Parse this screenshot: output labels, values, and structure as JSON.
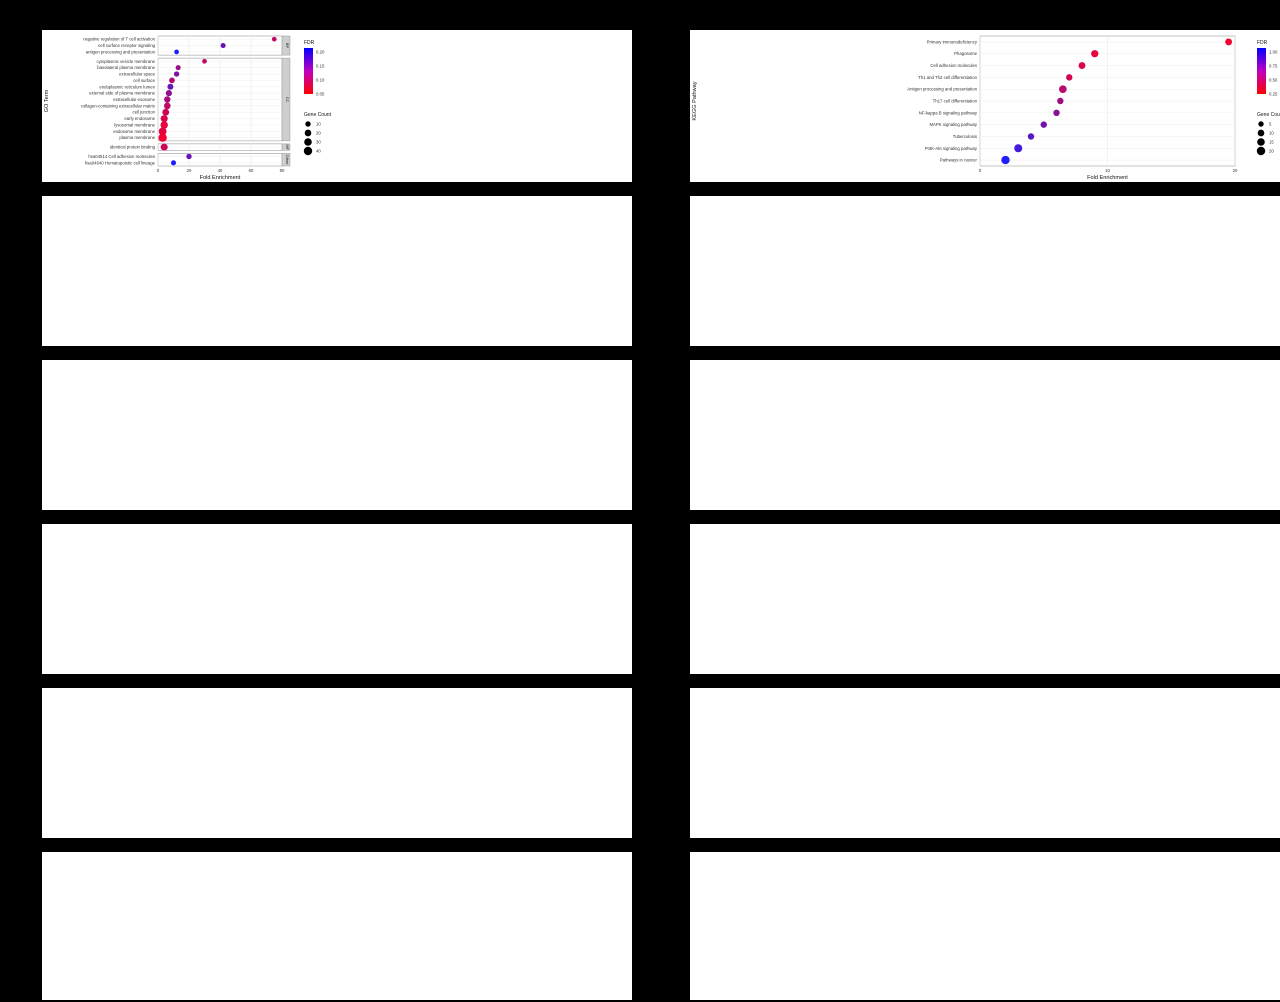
{
  "chart_data": [
    {
      "type": "scatter",
      "title": "",
      "xlabel": "Fold Enrichment",
      "ylabel": "GO Term",
      "grid": true,
      "legend_position": "right",
      "legend": {
        "fdr_title": "FDR",
        "fdr_ticks": [
          "0.20",
          "0.15",
          "0.10",
          "0.05"
        ],
        "count_title": "Gene Count",
        "count_ticks": [
          "10",
          "20",
          "30",
          "40"
        ]
      },
      "color_low": "#ff0000",
      "color_high": "#0000ff",
      "xlim": [
        0,
        80
      ],
      "x_ticks": [
        "0",
        "20",
        "40",
        "60",
        "80"
      ],
      "groups": [
        {
          "strip": "BP",
          "terms": [
            {
              "label": "negative regulation of T cell activation",
              "x": 75,
              "fdr": 0.05,
              "count": 3
            },
            {
              "label": "cell surface receptor signaling",
              "x": 42,
              "fdr": 0.12,
              "count": 4
            },
            {
              "label": "antigen processing and presentation",
              "x": 12,
              "fdr": 0.18,
              "count": 3
            }
          ]
        },
        {
          "strip": "CC",
          "terms": [
            {
              "label": "cytoplasmic vesicle membrane",
              "x": 30,
              "fdr": 0.05,
              "count": 3
            },
            {
              "label": "basolateral plasma membrane",
              "x": 13,
              "fdr": 0.08,
              "count": 4
            },
            {
              "label": "extracellular space",
              "x": 12,
              "fdr": 0.1,
              "count": 5
            },
            {
              "label": "cell surface",
              "x": 9,
              "fdr": 0.06,
              "count": 6
            },
            {
              "label": "endoplasmic reticulum lumen",
              "x": 8,
              "fdr": 0.12,
              "count": 7
            },
            {
              "label": "external side of plasma membrane",
              "x": 7,
              "fdr": 0.09,
              "count": 8
            },
            {
              "label": "extracellular exosome",
              "x": 6,
              "fdr": 0.07,
              "count": 9
            },
            {
              "label": "collagen-containing extracellular matrix",
              "x": 6,
              "fdr": 0.05,
              "count": 10
            },
            {
              "label": "cell junction",
              "x": 5,
              "fdr": 0.04,
              "count": 11
            },
            {
              "label": "early endosome",
              "x": 4,
              "fdr": 0.03,
              "count": 12
            },
            {
              "label": "lysosomal membrane",
              "x": 4,
              "fdr": 0.02,
              "count": 14
            },
            {
              "label": "endosome membrane",
              "x": 3,
              "fdr": 0.02,
              "count": 16
            },
            {
              "label": "plasma membrane",
              "x": 3,
              "fdr": 0.01,
              "count": 20
            }
          ]
        },
        {
          "strip": "MF",
          "terms": [
            {
              "label": "identical protein binding",
              "x": 4,
              "fdr": 0.04,
              "count": 12
            }
          ]
        },
        {
          "strip": "Other",
          "terms": [
            {
              "label": "hsa04514 Cell adhesion molecules",
              "x": 20,
              "fdr": 0.12,
              "count": 5
            },
            {
              "label": "hsa04640 Hematopoietic cell lineage",
              "x": 10,
              "fdr": 0.18,
              "count": 4
            }
          ]
        }
      ]
    },
    {
      "type": "scatter",
      "title": "",
      "xlabel": "Fold Enrichment",
      "ylabel": "KEGG Pathway",
      "grid": true,
      "legend_position": "right",
      "legend": {
        "fdr_title": "FDR",
        "fdr_ticks": [
          "1.00",
          "0.75",
          "0.50",
          "0.25"
        ],
        "count_title": "Gene Count",
        "count_ticks": [
          "5",
          "10",
          "15",
          "20"
        ]
      },
      "color_low": "#ff0000",
      "color_high": "#0000ff",
      "xlim": [
        0,
        20
      ],
      "x_ticks": [
        "0",
        "10",
        "20"
      ],
      "groups": [
        {
          "strip": "",
          "terms": [
            {
              "label": "Primary immunodeficiency",
              "x": 19.5,
              "fdr": 0.05,
              "count": 5
            },
            {
              "label": "Phagosome",
              "x": 9,
              "fdr": 0.1,
              "count": 6
            },
            {
              "label": "Cell adhesion molecules",
              "x": 8,
              "fdr": 0.15,
              "count": 5
            },
            {
              "label": "Th1 and Th2 cell differentiation",
              "x": 7,
              "fdr": 0.2,
              "count": 4
            },
            {
              "label": "Antigen processing and presentation",
              "x": 6.5,
              "fdr": 0.3,
              "count": 7
            },
            {
              "label": "Th17 cell differentiation",
              "x": 6.3,
              "fdr": 0.4,
              "count": 4
            },
            {
              "label": "NF-kappa B signaling pathway",
              "x": 6,
              "fdr": 0.5,
              "count": 4
            },
            {
              "label": "MAPK signaling pathway",
              "x": 5,
              "fdr": 0.6,
              "count": 4
            },
            {
              "label": "Tuberculosis",
              "x": 4,
              "fdr": 0.7,
              "count": 4
            },
            {
              "label": "PI3K-Akt signaling pathway",
              "x": 3,
              "fdr": 0.8,
              "count": 8
            },
            {
              "label": "Pathways in cancer",
              "x": 2,
              "fdr": 0.95,
              "count": 9
            }
          ]
        }
      ]
    }
  ]
}
